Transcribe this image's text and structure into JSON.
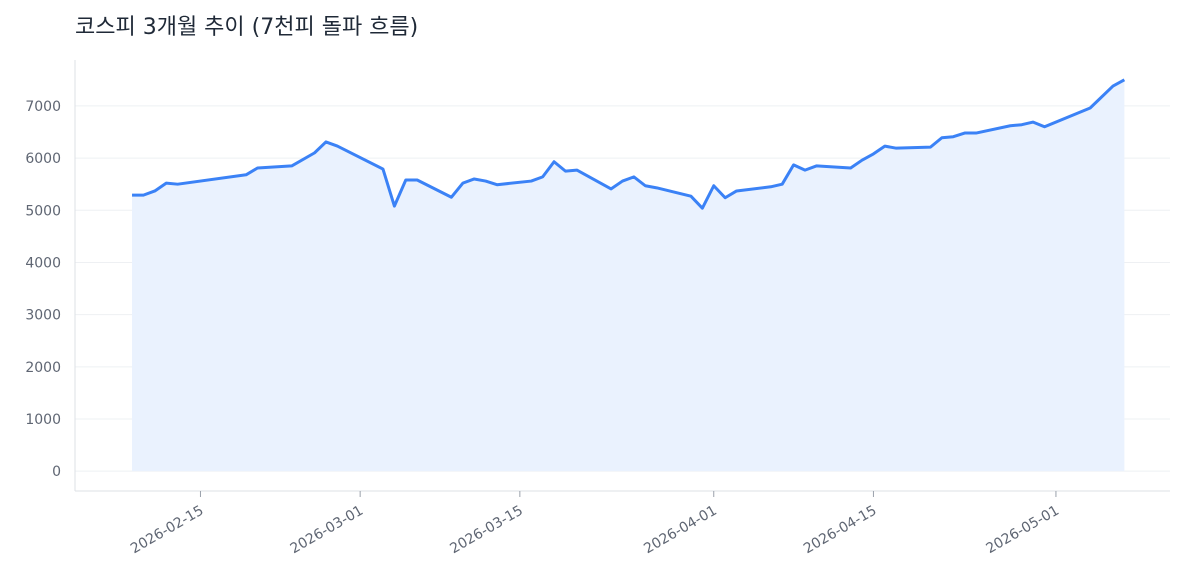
{
  "chart_data": {
    "type": "line",
    "title": "코스피 3개월 추이 (7천피 돌파 흐름)",
    "x": [
      "2026-02-09",
      "2026-02-10",
      "2026-02-11",
      "2026-02-12",
      "2026-02-13",
      "2026-02-19",
      "2026-02-20",
      "2026-02-23",
      "2026-02-25",
      "2026-02-26",
      "2026-02-27",
      "2026-03-03",
      "2026-03-04",
      "2026-03-05",
      "2026-03-06",
      "2026-03-09",
      "2026-03-10",
      "2026-03-11",
      "2026-03-12",
      "2026-03-13",
      "2026-03-16",
      "2026-03-17",
      "2026-03-18",
      "2026-03-19",
      "2026-03-20",
      "2026-03-23",
      "2026-03-24",
      "2026-03-25",
      "2026-03-26",
      "2026-03-27",
      "2026-03-30",
      "2026-03-31",
      "2026-04-01",
      "2026-04-02",
      "2026-04-03",
      "2026-04-06",
      "2026-04-07",
      "2026-04-08",
      "2026-04-09",
      "2026-04-10",
      "2026-04-13",
      "2026-04-14",
      "2026-04-15",
      "2026-04-16",
      "2026-04-17",
      "2026-04-20",
      "2026-04-21",
      "2026-04-22",
      "2026-04-23",
      "2026-04-24",
      "2026-04-27",
      "2026-04-28",
      "2026-04-29",
      "2026-04-30",
      "2026-05-04",
      "2026-05-06",
      "2026-05-07"
    ],
    "series": [
      {
        "color": "#3b82f6",
        "fill": "#eaf2fe",
        "values": [
          5290,
          5290,
          5370,
          5520,
          5500,
          5680,
          5810,
          5850,
          6100,
          6310,
          6230,
          5790,
          5080,
          5580,
          5580,
          5250,
          5520,
          5600,
          5560,
          5490,
          5560,
          5640,
          5930,
          5750,
          5770,
          5410,
          5560,
          5640,
          5470,
          5430,
          5270,
          5040,
          5470,
          5240,
          5370,
          5450,
          5500,
          5870,
          5770,
          5850,
          5810,
          5960,
          6080,
          6230,
          6190,
          6210,
          6390,
          6410,
          6480,
          6480,
          6620,
          6640,
          6690,
          6600,
          6960,
          7380,
          7500
        ]
      }
    ],
    "xlim": [
      "2026-02-04",
      "2026-05-11"
    ],
    "xticks": [
      "2026-02-15",
      "2026-03-01",
      "2026-03-15",
      "2026-04-01",
      "2026-04-15",
      "2026-05-01"
    ],
    "ylim": [
      -380,
      7880
    ],
    "yticks": [
      0,
      1000,
      2000,
      3000,
      4000,
      5000,
      6000,
      7000
    ],
    "grid": true
  }
}
